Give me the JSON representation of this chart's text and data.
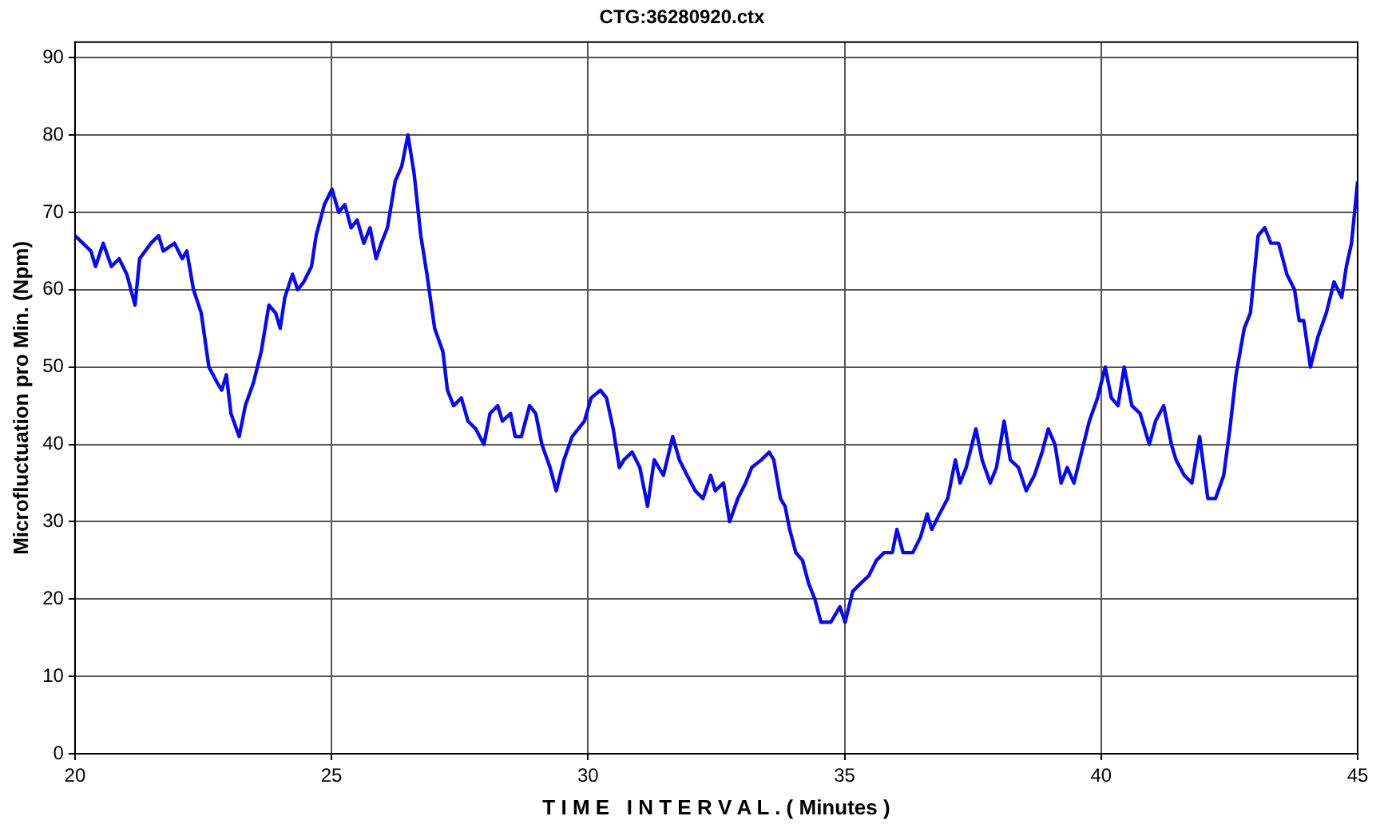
{
  "chart_data": {
    "type": "line",
    "title": "CTG:36280920.ctx",
    "xlabel": "T I M E   I N T E R V A L . ( Minutes )",
    "ylabel": "Microfluctuation pro Min. (Npm)",
    "xlim": [
      20,
      45
    ],
    "ylim": [
      0,
      92
    ],
    "xticks": [
      20,
      25,
      30,
      35,
      40,
      45
    ],
    "yticks": [
      0,
      10,
      20,
      30,
      40,
      50,
      60,
      70,
      80,
      90
    ],
    "grid": true,
    "marker": "none",
    "line_style": "solid",
    "series": [
      {
        "color": "#0a0ae6",
        "x": [
          20,
          20.31,
          20.4,
          20.55,
          20.71,
          20.86,
          21.01,
          21.17,
          21.26,
          21.48,
          21.63,
          21.72,
          21.94,
          22.09,
          22.18,
          22.31,
          22.46,
          22.61,
          22.77,
          22.86,
          22.95,
          23.04,
          23.2,
          23.32,
          23.48,
          23.63,
          23.78,
          23.91,
          24,
          24.09,
          24.24,
          24.34,
          24.46,
          24.61,
          24.7,
          24.86,
          25.01,
          25.14,
          25.26,
          25.38,
          25.5,
          25.63,
          25.75,
          25.87,
          25.97,
          26.09,
          26.24,
          26.37,
          26.49,
          26.61,
          26.74,
          26.86,
          27.01,
          27.17,
          27.26,
          27.38,
          27.53,
          27.66,
          27.81,
          27.97,
          28.09,
          28.24,
          28.33,
          28.49,
          28.58,
          28.7,
          28.86,
          28.98,
          29.1,
          29.26,
          29.38,
          29.53,
          29.69,
          29.81,
          29.93,
          30.06,
          30.24,
          30.36,
          30.49,
          30.61,
          30.7,
          30.86,
          31.01,
          31.16,
          31.29,
          31.47,
          31.65,
          31.78,
          31.93,
          32.09,
          32.24,
          32.39,
          32.48,
          32.64,
          32.76,
          32.92,
          33.07,
          33.19,
          33.38,
          33.53,
          33.62,
          33.75,
          33.84,
          33.93,
          34.05,
          34.18,
          34.3,
          34.42,
          34.54,
          34.73,
          34.91,
          35.01,
          35.16,
          35.31,
          35.47,
          35.62,
          35.77,
          35.93,
          36.02,
          36.14,
          36.33,
          36.48,
          36.61,
          36.7,
          36.85,
          37.01,
          37.16,
          37.25,
          37.37,
          37.56,
          37.68,
          37.84,
          37.96,
          38.11,
          38.23,
          38.39,
          38.54,
          38.7,
          38.85,
          38.97,
          39.1,
          39.22,
          39.34,
          39.47,
          39.62,
          39.77,
          39.93,
          40.08,
          40.2,
          40.33,
          40.45,
          40.6,
          40.76,
          40.94,
          41.06,
          41.22,
          41.37,
          41.46,
          41.62,
          41.77,
          41.92,
          42.08,
          42.23,
          42.39,
          42.51,
          42.63,
          42.79,
          42.91,
          43.06,
          43.19,
          43.31,
          43.46,
          43.62,
          43.77,
          43.86,
          43.95,
          44.08,
          44.23,
          44.39,
          44.54,
          44.69,
          44.78,
          44.88,
          45
        ],
        "values": [
          67,
          65,
          63,
          66,
          63,
          64,
          62,
          58,
          64,
          66,
          67,
          65,
          66,
          64,
          65,
          60,
          57,
          50,
          48,
          47,
          49,
          44,
          41,
          45,
          48,
          52,
          58,
          57,
          55,
          59,
          62,
          60,
          61,
          63,
          67,
          71,
          73,
          70,
          71,
          68,
          69,
          66,
          68,
          64,
          66,
          68,
          74,
          76,
          80,
          75,
          67,
          62,
          55,
          52,
          47,
          45,
          46,
          43,
          42,
          40,
          44,
          45,
          43,
          44,
          41,
          41,
          45,
          44,
          40,
          37,
          34,
          38,
          41,
          42,
          43,
          46,
          47,
          46,
          42,
          37,
          38,
          39,
          37,
          32,
          38,
          36,
          41,
          38,
          36,
          34,
          33,
          36,
          34,
          35,
          30,
          33,
          35,
          37,
          38,
          39,
          38,
          33,
          32,
          29,
          26,
          25,
          22,
          20,
          17,
          17,
          19,
          17,
          21,
          22,
          23,
          25,
          26,
          26,
          29,
          26,
          26,
          28,
          31,
          29,
          31,
          33,
          38,
          35,
          37,
          42,
          38,
          35,
          37,
          43,
          38,
          37,
          34,
          36,
          39,
          42,
          40,
          35,
          37,
          35,
          39,
          43,
          46,
          50,
          46,
          45,
          50,
          45,
          44,
          40,
          43,
          45,
          40,
          38,
          36,
          35,
          41,
          33,
          33,
          36,
          42,
          49,
          55,
          57,
          67,
          68,
          66,
          66,
          62,
          60,
          56,
          56,
          50,
          54,
          57,
          61,
          59,
          63,
          66,
          74
        ]
      }
    ]
  }
}
